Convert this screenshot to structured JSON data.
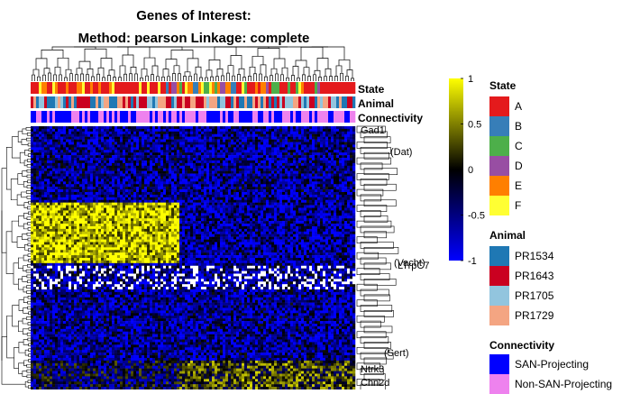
{
  "chart_data": {
    "type": "heatmap",
    "title_line1": "Genes of Interest:",
    "title_line2": "Method: pearson  Linkage: complete",
    "annotation_tracks": [
      "State",
      "Animal",
      "Connectivity"
    ],
    "colorbar": {
      "min": -1,
      "max": 1,
      "ticks": [
        "1",
        "0.5",
        "0",
        "-0.5",
        "-1"
      ],
      "tick_values": [
        1,
        0.5,
        0,
        -0.5,
        -1
      ],
      "colors": [
        "#0000ff",
        "#000000",
        "#ffff00"
      ]
    },
    "legends": [
      {
        "title": "State",
        "items": [
          {
            "label": "A",
            "color": "#e41a1c"
          },
          {
            "label": "B",
            "color": "#377eb8"
          },
          {
            "label": "C",
            "color": "#4daf4a"
          },
          {
            "label": "D",
            "color": "#984ea3"
          },
          {
            "label": "E",
            "color": "#ff7f00"
          },
          {
            "label": "F",
            "color": "#ffff33"
          }
        ]
      },
      {
        "title": "Animal",
        "items": [
          {
            "label": "PR1534",
            "color": "#1f78b4"
          },
          {
            "label": "PR1643",
            "color": "#ca0020"
          },
          {
            "label": "PR1705",
            "color": "#92c5de"
          },
          {
            "label": "PR1729",
            "color": "#f4a582"
          }
        ]
      },
      {
        "title": "Connectivity",
        "items": [
          {
            "label": "SAN-Projecting",
            "color": "#0000ff"
          },
          {
            "label": "Non-SAN-Projecting",
            "color": "#ee82ee"
          }
        ]
      }
    ],
    "row_labels_visible": [
      "Gad1",
      "(Dat)",
      "(Vacht)",
      "LTrpC7",
      "(Sert)",
      "Chn2d",
      "Ntrk3"
    ],
    "grid": false
  }
}
